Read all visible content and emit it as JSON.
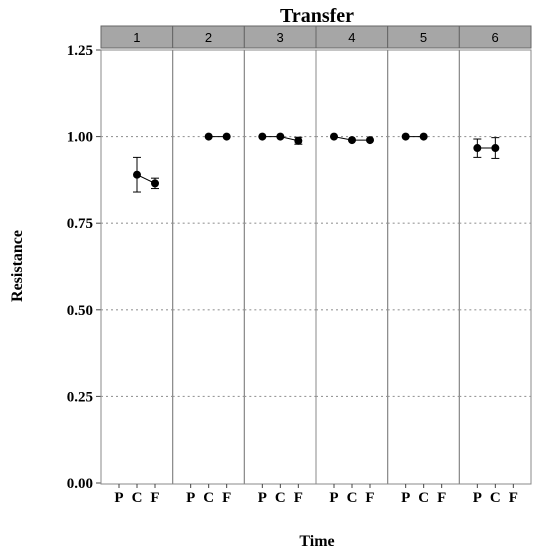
{
  "chart_data": {
    "type": "scatter",
    "title": "Transfer",
    "xlabel": "Time",
    "ylabel": "Resistance",
    "ylim": [
      0,
      1.25
    ],
    "y_ticks": [
      "0.00",
      "0.25",
      "0.50",
      "0.75",
      "1.00",
      "1.25"
    ],
    "categories": [
      "P",
      "C",
      "F"
    ],
    "panels": [
      {
        "label": "1",
        "points": [
          {
            "x": "C",
            "y": 0.89,
            "err": [
              0.84,
              0.94
            ]
          },
          {
            "x": "F",
            "y": 0.865,
            "err": [
              0.85,
              0.88
            ]
          }
        ]
      },
      {
        "label": "2",
        "points": [
          {
            "x": "C",
            "y": 1.0
          },
          {
            "x": "F",
            "y": 1.0
          }
        ]
      },
      {
        "label": "3",
        "points": [
          {
            "x": "P",
            "y": 1.0
          },
          {
            "x": "C",
            "y": 1.0
          },
          {
            "x": "F",
            "y": 0.988,
            "err": [
              0.978,
              0.998
            ]
          }
        ]
      },
      {
        "label": "4",
        "points": [
          {
            "x": "P",
            "y": 1.0
          },
          {
            "x": "C",
            "y": 0.99
          },
          {
            "x": "F",
            "y": 0.99
          }
        ]
      },
      {
        "label": "5",
        "points": [
          {
            "x": "P",
            "y": 1.0
          },
          {
            "x": "C",
            "y": 1.0
          }
        ]
      },
      {
        "label": "6",
        "points": [
          {
            "x": "P",
            "y": 0.967,
            "err": [
              0.94,
              0.993
            ]
          },
          {
            "x": "C",
            "y": 0.967,
            "err": [
              0.937,
              0.997
            ]
          }
        ]
      }
    ],
    "grid": "dotted horizontal at major ticks",
    "legend": "none"
  }
}
